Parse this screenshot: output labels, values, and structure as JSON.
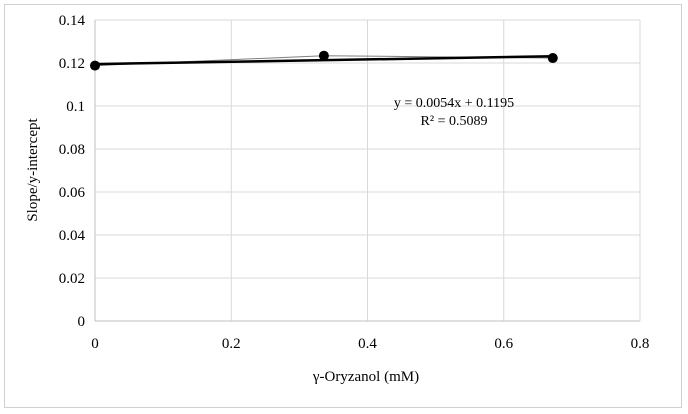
{
  "chart_data": {
    "type": "scatter",
    "xlabel": "γ-Oryzanol (mM)",
    "ylabel": "Slope/y-intercept",
    "xlim": [
      0,
      0.8
    ],
    "ylim": [
      0,
      0.14
    ],
    "x_ticks": [
      0,
      0.2,
      0.4,
      0.6,
      0.8
    ],
    "x_tick_labels": [
      "0",
      "0.2",
      "0.4",
      "0.6",
      "0.8"
    ],
    "y_ticks": [
      0,
      0.02,
      0.04,
      0.06,
      0.08,
      0.1,
      0.12,
      0.14
    ],
    "y_tick_labels": [
      "0",
      "0.02",
      "0.04",
      "0.06",
      "0.08",
      "0.1",
      "0.12",
      "0.14"
    ],
    "grid": true,
    "series": [
      {
        "x": [
          0,
          0.336,
          0.672
        ],
        "y": [
          0.1188,
          0.1234,
          0.1223
        ]
      }
    ],
    "trendline": {
      "slope": 0.0054,
      "intercept": 0.1195,
      "x_range": [
        0,
        0.672
      ]
    },
    "annotations": {
      "equation": "y = 0.0054x + 0.1195",
      "r_squared": "R² = 0.5089"
    },
    "colors": {
      "marker": "#000000",
      "trendline": "#000000",
      "grid": "#d9d9d9",
      "axis": "#bfbfbf"
    }
  }
}
